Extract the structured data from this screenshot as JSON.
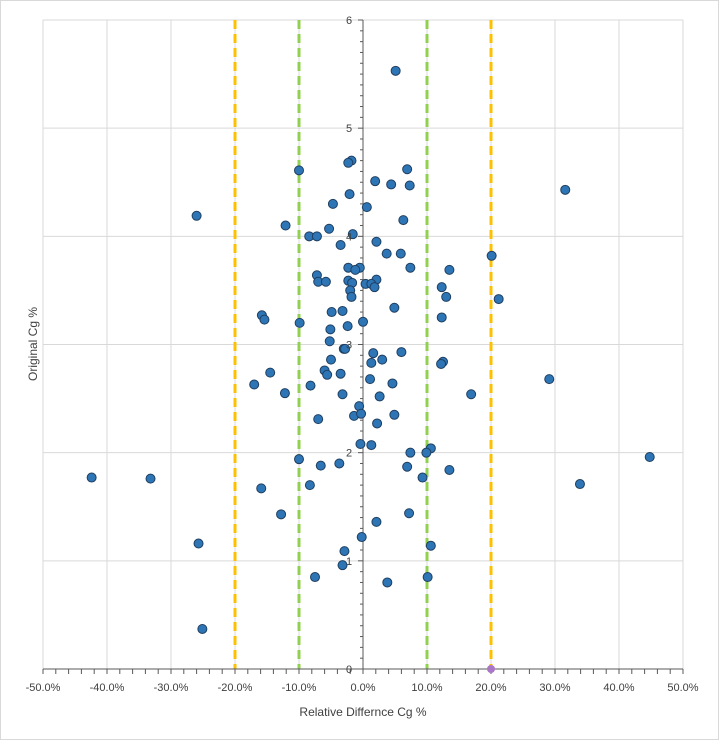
{
  "chart_data": {
    "type": "scatter",
    "title": "",
    "xlabel": "Relative Differnce Cg %",
    "ylabel": "Original Cg %",
    "xlim": [
      -50,
      50
    ],
    "ylim": [
      0,
      6
    ],
    "grid": true,
    "x_tick_labels": [
      "-50.0%",
      "-40.0%",
      "-30.0%",
      "-20.0%",
      "-10.0%",
      "0.0%",
      "10.0%",
      "20.0%",
      "30.0%",
      "40.0%",
      "50.0%"
    ],
    "x_tick_values": [
      -50,
      -40,
      -30,
      -20,
      -10,
      0,
      10,
      20,
      30,
      40,
      50
    ],
    "y_tick_labels": [
      "0",
      "1",
      "2",
      "3",
      "4",
      "5",
      "6"
    ],
    "y_tick_values": [
      0,
      1,
      2,
      3,
      4,
      5,
      6
    ],
    "reference_lines": [
      {
        "x": -20,
        "color": "#ffc000"
      },
      {
        "x": 20,
        "color": "#ffc000"
      },
      {
        "x": -10,
        "color": "#92d050"
      },
      {
        "x": 10,
        "color": "#92d050"
      }
    ],
    "series": [
      {
        "name": "Cg",
        "color": "#2e75b6",
        "points": [
          [
            5.1,
            5.53
          ],
          [
            -10.0,
            4.61
          ],
          [
            -1.8,
            4.7
          ],
          [
            -2.3,
            4.68
          ],
          [
            6.9,
            4.62
          ],
          [
            1.9,
            4.51
          ],
          [
            4.4,
            4.48
          ],
          [
            7.3,
            4.47
          ],
          [
            31.6,
            4.43
          ],
          [
            -2.1,
            4.39
          ],
          [
            -4.7,
            4.3
          ],
          [
            0.6,
            4.27
          ],
          [
            -26.0,
            4.19
          ],
          [
            6.3,
            4.15
          ],
          [
            -12.1,
            4.1
          ],
          [
            -5.3,
            4.07
          ],
          [
            -1.6,
            4.02
          ],
          [
            -8.4,
            4.0
          ],
          [
            -7.2,
            4.0
          ],
          [
            2.1,
            3.95
          ],
          [
            -3.5,
            3.92
          ],
          [
            3.7,
            3.84
          ],
          [
            5.9,
            3.84
          ],
          [
            20.1,
            3.82
          ],
          [
            7.4,
            3.71
          ],
          [
            -2.3,
            3.71
          ],
          [
            -0.5,
            3.71
          ],
          [
            -1.2,
            3.69
          ],
          [
            13.5,
            3.69
          ],
          [
            -7.2,
            3.64
          ],
          [
            -7.0,
            3.58
          ],
          [
            -5.8,
            3.58
          ],
          [
            -2.3,
            3.59
          ],
          [
            -1.7,
            3.57
          ],
          [
            2.1,
            3.6
          ],
          [
            0.4,
            3.56
          ],
          [
            1.3,
            3.56
          ],
          [
            1.8,
            3.53
          ],
          [
            12.3,
            3.53
          ],
          [
            -2.0,
            3.5
          ],
          [
            -1.8,
            3.44
          ],
          [
            13.0,
            3.44
          ],
          [
            21.2,
            3.42
          ],
          [
            -4.9,
            3.3
          ],
          [
            -3.2,
            3.31
          ],
          [
            4.9,
            3.34
          ],
          [
            -15.8,
            3.27
          ],
          [
            12.3,
            3.25
          ],
          [
            -15.4,
            3.23
          ],
          [
            -9.9,
            3.2
          ],
          [
            -2.4,
            3.17
          ],
          [
            0.0,
            3.21
          ],
          [
            -5.1,
            3.14
          ],
          [
            -5.2,
            3.03
          ],
          [
            -3.0,
            2.96
          ],
          [
            -2.8,
            2.96
          ],
          [
            1.6,
            2.92
          ],
          [
            6.0,
            2.93
          ],
          [
            -5.0,
            2.86
          ],
          [
            3.0,
            2.86
          ],
          [
            1.3,
            2.83
          ],
          [
            12.5,
            2.84
          ],
          [
            12.2,
            2.82
          ],
          [
            -6.0,
            2.76
          ],
          [
            -5.6,
            2.72
          ],
          [
            -14.5,
            2.74
          ],
          [
            -3.5,
            2.73
          ],
          [
            1.1,
            2.68
          ],
          [
            29.1,
            2.68
          ],
          [
            -17.0,
            2.63
          ],
          [
            -8.2,
            2.62
          ],
          [
            4.6,
            2.64
          ],
          [
            -12.2,
            2.55
          ],
          [
            -3.2,
            2.54
          ],
          [
            2.6,
            2.52
          ],
          [
            16.9,
            2.54
          ],
          [
            -0.6,
            2.43
          ],
          [
            -1.4,
            2.34
          ],
          [
            -0.3,
            2.36
          ],
          [
            4.9,
            2.35
          ],
          [
            -7.0,
            2.31
          ],
          [
            2.2,
            2.27
          ],
          [
            10.6,
            2.04
          ],
          [
            -0.4,
            2.08
          ],
          [
            1.3,
            2.07
          ],
          [
            7.4,
            2.0
          ],
          [
            9.9,
            2.0
          ],
          [
            44.8,
            1.96
          ],
          [
            -10.0,
            1.94
          ],
          [
            -3.7,
            1.9
          ],
          [
            -6.6,
            1.88
          ],
          [
            6.9,
            1.87
          ],
          [
            13.5,
            1.84
          ],
          [
            -42.4,
            1.77
          ],
          [
            -33.2,
            1.76
          ],
          [
            9.3,
            1.77
          ],
          [
            -8.3,
            1.7
          ],
          [
            33.9,
            1.71
          ],
          [
            -15.9,
            1.67
          ],
          [
            -12.8,
            1.43
          ],
          [
            7.2,
            1.44
          ],
          [
            2.1,
            1.36
          ],
          [
            -0.2,
            1.22
          ],
          [
            -25.7,
            1.16
          ],
          [
            10.6,
            1.14
          ],
          [
            -2.9,
            1.09
          ],
          [
            -3.2,
            0.96
          ],
          [
            -7.5,
            0.85
          ],
          [
            10.1,
            0.85
          ],
          [
            3.8,
            0.8
          ],
          [
            -25.1,
            0.37
          ]
        ]
      },
      {
        "name": "marker",
        "color": "#a977c6",
        "points": [
          [
            20.0,
            0.0
          ]
        ]
      }
    ]
  }
}
